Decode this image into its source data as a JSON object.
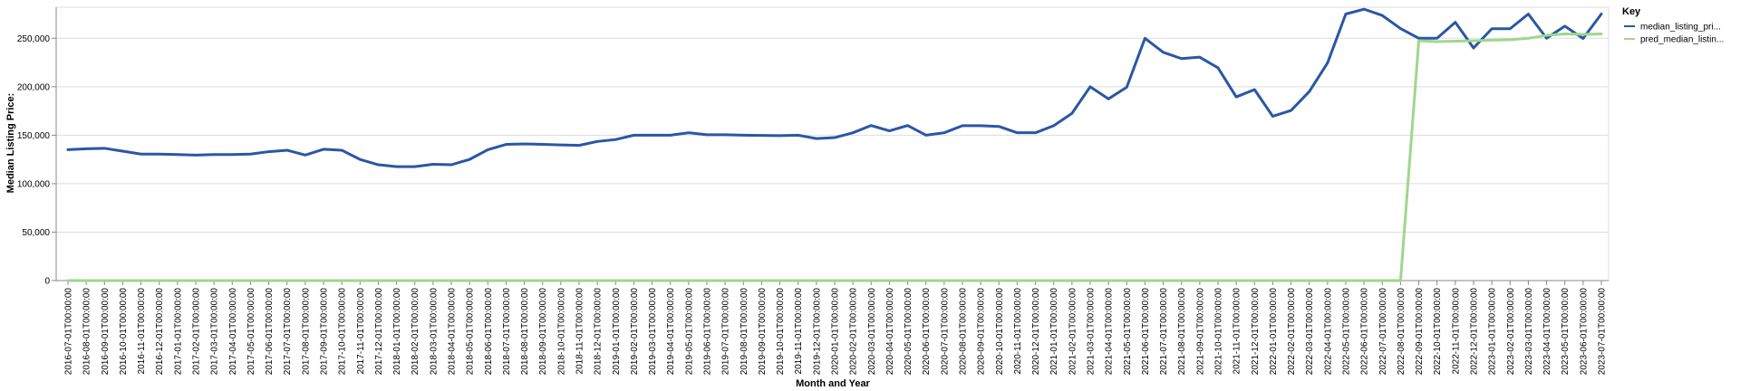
{
  "chart_data": {
    "type": "line",
    "xlabel": "Month and Year",
    "ylabel": "Median Listing Price:",
    "ylim": [
      0,
      282000
    ],
    "yticks": [
      0,
      50000,
      100000,
      150000,
      200000,
      250000
    ],
    "ytick_labels": [
      "0",
      "50,000",
      "100,000",
      "150,000",
      "200,000",
      "250,000"
    ],
    "grid": true,
    "legend": {
      "title": "Key",
      "position": "top-right",
      "labels": [
        "median_listing_pri...",
        "pred_median_listin..."
      ]
    },
    "categories": [
      "2016-07-01T00:00:00",
      "2016-08-01T00:00:00",
      "2016-09-01T00:00:00",
      "2016-10-01T00:00:00",
      "2016-11-01T00:00:00",
      "2016-12-01T00:00:00",
      "2017-01-01T00:00:00",
      "2017-02-01T00:00:00",
      "2017-03-01T00:00:00",
      "2017-04-01T00:00:00",
      "2017-05-01T00:00:00",
      "2017-06-01T00:00:00",
      "2017-07-01T00:00:00",
      "2017-08-01T00:00:00",
      "2017-09-01T00:00:00",
      "2017-10-01T00:00:00",
      "2017-11-01T00:00:00",
      "2017-12-01T00:00:00",
      "2018-01-01T00:00:00",
      "2018-02-01T00:00:00",
      "2018-03-01T00:00:00",
      "2018-04-01T00:00:00",
      "2018-05-01T00:00:00",
      "2018-06-01T00:00:00",
      "2018-07-01T00:00:00",
      "2018-08-01T00:00:00",
      "2018-09-01T00:00:00",
      "2018-10-01T00:00:00",
      "2018-11-01T00:00:00",
      "2018-12-01T00:00:00",
      "2019-01-01T00:00:00",
      "2019-02-01T00:00:00",
      "2019-03-01T00:00:00",
      "2019-04-01T00:00:00",
      "2019-05-01T00:00:00",
      "2019-06-01T00:00:00",
      "2019-07-01T00:00:00",
      "2019-08-01T00:00:00",
      "2019-09-01T00:00:00",
      "2019-10-01T00:00:00",
      "2019-11-01T00:00:00",
      "2019-12-01T00:00:00",
      "2020-01-01T00:00:00",
      "2020-02-01T00:00:00",
      "2020-03-01T00:00:00",
      "2020-04-01T00:00:00",
      "2020-05-01T00:00:00",
      "2020-06-01T00:00:00",
      "2020-07-01T00:00:00",
      "2020-08-01T00:00:00",
      "2020-09-01T00:00:00",
      "2020-10-01T00:00:00",
      "2020-11-01T00:00:00",
      "2020-12-01T00:00:00",
      "2021-01-01T00:00:00",
      "2021-02-01T00:00:00",
      "2021-03-01T00:00:00",
      "2021-04-01T00:00:00",
      "2021-05-01T00:00:00",
      "2021-06-01T00:00:00",
      "2021-07-01T00:00:00",
      "2021-08-01T00:00:00",
      "2021-09-01T00:00:00",
      "2021-10-01T00:00:00",
      "2021-11-01T00:00:00",
      "2021-12-01T00:00:00",
      "2022-01-01T00:00:00",
      "2022-02-01T00:00:00",
      "2022-03-01T00:00:00",
      "2022-04-01T00:00:00",
      "2022-05-01T00:00:00",
      "2022-06-01T00:00:00",
      "2022-07-01T00:00:00",
      "2022-08-01T00:00:00",
      "2022-09-01T00:00:00",
      "2022-10-01T00:00:00",
      "2022-11-01T00:00:00",
      "2022-12-01T00:00:00",
      "2023-01-01T00:00:00",
      "2023-02-01T00:00:00",
      "2023-03-01T00:00:00",
      "2023-04-01T00:00:00",
      "2023-05-01T00:00:00",
      "2023-06-01T00:00:00",
      "2023-07-01T00:00:00"
    ],
    "series": [
      {
        "name": "median_listing_pri...",
        "color": "#2a57a4",
        "values": [
          135000,
          136000,
          136500,
          133500,
          130500,
          130500,
          130000,
          129500,
          130000,
          130000,
          130500,
          133000,
          134500,
          129500,
          135500,
          134500,
          125000,
          119500,
          117500,
          117500,
          120000,
          119500,
          125000,
          135000,
          140500,
          141000,
          140500,
          140000,
          139500,
          143500,
          145500,
          150000,
          150000,
          150000,
          152500,
          150500,
          150500,
          150000,
          149800,
          149500,
          150000,
          146500,
          147500,
          152500,
          160000,
          154500,
          160000,
          150000,
          152500,
          159800,
          159800,
          159000,
          152500,
          152500,
          159800,
          172500,
          200000,
          187500,
          199500,
          250000,
          235500,
          229000,
          230500,
          219500,
          189500,
          197000,
          169500,
          175500,
          195000,
          224500,
          275000,
          280000,
          273500,
          260000,
          250000,
          250000,
          266500,
          240000,
          259800,
          259800,
          275000,
          250000,
          262500,
          249800,
          275000
        ]
      },
      {
        "name": "pred_median_listin...",
        "color": "#9fd68e",
        "values": [
          0,
          0,
          0,
          0,
          0,
          0,
          0,
          0,
          0,
          0,
          0,
          0,
          0,
          0,
          0,
          0,
          0,
          0,
          0,
          0,
          0,
          0,
          0,
          0,
          0,
          0,
          0,
          0,
          0,
          0,
          0,
          0,
          0,
          0,
          0,
          0,
          0,
          0,
          0,
          0,
          0,
          0,
          0,
          0,
          0,
          0,
          0,
          0,
          0,
          0,
          0,
          0,
          0,
          0,
          0,
          0,
          0,
          0,
          0,
          0,
          0,
          0,
          0,
          0,
          0,
          0,
          0,
          0,
          0,
          0,
          0,
          0,
          0,
          0,
          247500,
          246500,
          247000,
          247500,
          248000,
          248500,
          250000,
          253000,
          254500,
          254000,
          254500
        ]
      }
    ]
  }
}
